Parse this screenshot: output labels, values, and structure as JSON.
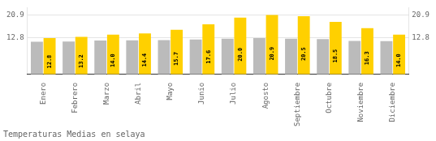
{
  "chart_data": {
    "type": "bar",
    "title": "Temperaturas Medias en selaya",
    "categories": [
      "Enero",
      "Febrero",
      "Marzo",
      "Abril",
      "Mayo",
      "Junio",
      "Julio",
      "Agosto",
      "Septiembre",
      "Octubre",
      "Noviembre",
      "Diciembre"
    ],
    "series": [
      {
        "color": "#BBBBBB",
        "values": [
          11.5,
          11.6,
          11.9,
          12.0,
          12.1,
          12.3,
          12.6,
          12.8,
          12.6,
          12.4,
          11.8,
          11.7
        ]
      },
      {
        "color": "#FFD000",
        "values": [
          12.8,
          13.2,
          14.0,
          14.4,
          15.7,
          17.6,
          20.0,
          20.9,
          20.5,
          18.5,
          16.3,
          14.0
        ],
        "data_labels": true,
        "value_labels": [
          "12.8",
          "13.2",
          "14.0",
          "14.4",
          "15.7",
          "17.6",
          "20.0",
          "20.9",
          "20.5",
          "18.5",
          "16.3",
          "14.0"
        ]
      }
    ],
    "ylim": [
      0,
      23.5
    ],
    "yticks": [
      12.8,
      20.9
    ],
    "y2lim": [
      0,
      23.5
    ],
    "y2ticks": [
      12.8,
      20.9
    ],
    "grid": true
  }
}
